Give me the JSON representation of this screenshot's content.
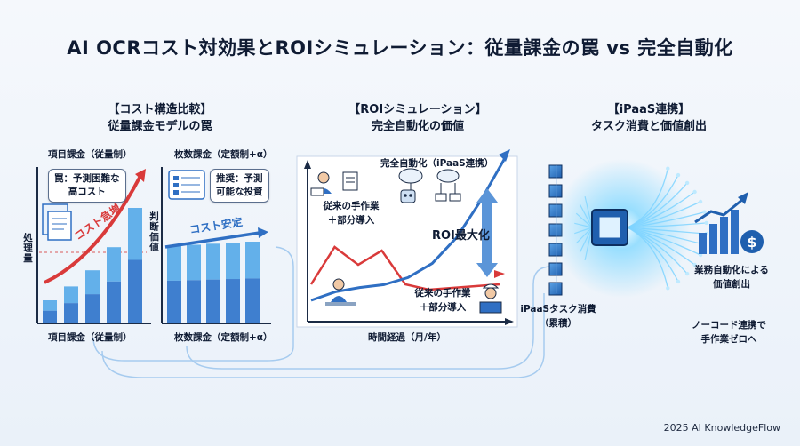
{
  "title": "AI OCRコスト対効果とROIシミュレーション：従量課金の罠 vs 完全自動化",
  "sections": {
    "left": {
      "heading_line1": "【コスト構造比較】",
      "heading_line2": "従量課金モデルの罠",
      "chart1_top_label": "項目課金（従量制）",
      "chart1_bottom_label": "項目課金（従量制）",
      "chart1_axis_label": "処理量",
      "chart1_bubble_line1": "罠：予測困難な",
      "chart1_bubble_line2": "高コスト",
      "chart1_arrow_label": "コスト急増",
      "chart2_top_label": "枚数課金（定額制+α）",
      "chart2_bottom_label": "枚数課金（定額制+α）",
      "chart2_axis_label": "判断価値",
      "chart2_bubble_line1": "推奨：予測",
      "chart2_bubble_line2": "可能な投資",
      "chart2_arrow_label": "コスト安定"
    },
    "middle": {
      "heading_line1": "【ROIシミュレーション】",
      "heading_line2": "完全自動化の価値",
      "label_full_auto": "完全自動化（iPaaS連携）",
      "label_manual_top_line1": "従来の手作業",
      "label_manual_top_line2": "＋部分導入",
      "label_manual_bottom_line1": "従来の手作業",
      "label_manual_bottom_line2": "＋部分導入",
      "roi_label": "ROI最大化",
      "x_axis_label": "時間経過（月/年）"
    },
    "right": {
      "heading_line1": "【iPaaS連携】",
      "heading_line2": "タスク消費と価値創出",
      "task_label_line1": "iPaaSタスク消費",
      "task_label_line2": "（累積）",
      "value_label_line1": "業務自動化による",
      "value_label_line2": "価値創出",
      "nocode_line1": "ノーコード連携で",
      "nocode_line2": "手作業ゼロへ"
    }
  },
  "chart_data": [
    {
      "type": "bar",
      "name": "項目課金（従量制）",
      "categories": [
        "1",
        "2",
        "3",
        "4",
        "5"
      ],
      "series": [
        {
          "values": [
            20,
            32,
            46,
            66,
            100
          ]
        }
      ],
      "colors": {
        "dark": "#3f7fcf",
        "light": "#63b0ea"
      }
    },
    {
      "type": "bar",
      "name": "枚数課金（定額制+α）",
      "categories": [
        "1",
        "2",
        "3",
        "4",
        "5"
      ],
      "series": [
        {
          "values": [
            76,
            77,
            78,
            79,
            80
          ]
        }
      ],
      "colors": {
        "dark": "#3f7fcf",
        "light": "#63b0ea"
      }
    },
    {
      "type": "line",
      "name": "ROI",
      "series": [
        {
          "values": [
            0,
            6,
            9,
            11,
            16,
            26,
            44,
            70,
            100
          ]
        },
        {
          "values": [
            30,
            72,
            52,
            68,
            30,
            24,
            26,
            28,
            30
          ]
        }
      ],
      "colors": {
        "blue": "#2f6fc3",
        "red": "#d93a3a"
      }
    }
  ],
  "colors": {
    "accent_blue": "#2f6fc3",
    "accent_red": "#d93a3a",
    "glow": "#7fd4ff"
  },
  "footer": "2025 AI KnowledgeFlow"
}
